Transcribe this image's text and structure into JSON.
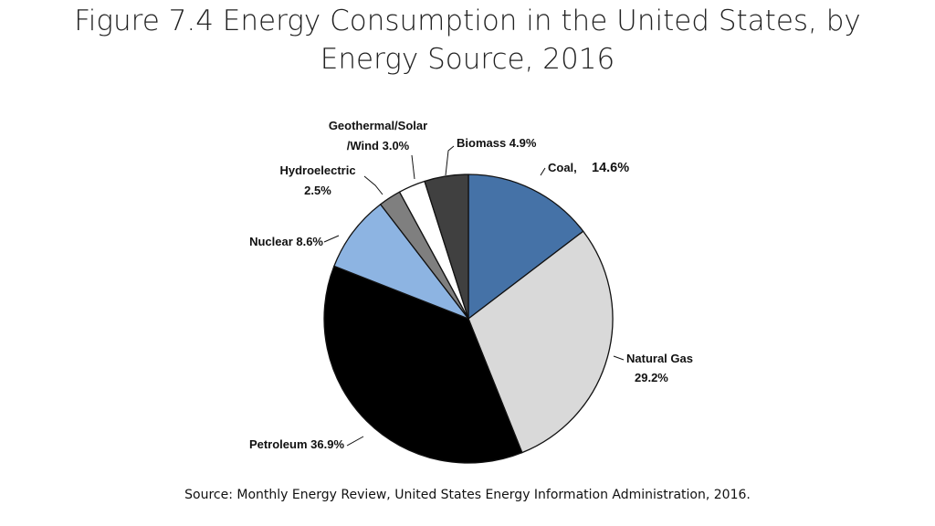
{
  "slide": {
    "title": "Figure 7.4 Energy Consumption in the United States, by Energy Source, 2016",
    "source": "Source: Monthly Energy Review, United States Energy Information Administration, 2016."
  },
  "chart_data": {
    "type": "pie",
    "title": "",
    "legend": "none",
    "slices": [
      {
        "name": "Coal",
        "value": 14.6,
        "color": "#4572a7",
        "label_lines": [
          "Coal,",
          "14.6%"
        ]
      },
      {
        "name": "Natural Gas",
        "value": 29.2,
        "color": "#d9d9d9",
        "label_lines": [
          "Natural Gas",
          "29.2%"
        ]
      },
      {
        "name": "Petroleum",
        "value": 36.9,
        "color": "#000000",
        "label_lines": [
          "Petroleum 36.9%"
        ]
      },
      {
        "name": "Nuclear",
        "value": 8.6,
        "color": "#8db4e2",
        "label_lines": [
          "Nuclear 8.6%"
        ]
      },
      {
        "name": "Hydroelectric",
        "value": 2.5,
        "color": "#7f7f7f",
        "label_lines": [
          "Hydroelectric",
          "2.5%"
        ]
      },
      {
        "name": "Geothermal/Solar/Wind",
        "value": 3.0,
        "color": "#ffffff",
        "label_lines": [
          "Geothermal/Solar",
          "/Wind 3.0%"
        ]
      },
      {
        "name": "Biomass",
        "value": 4.9,
        "color": "#404040",
        "label_lines": [
          "Biomass 4.9%"
        ]
      }
    ]
  }
}
